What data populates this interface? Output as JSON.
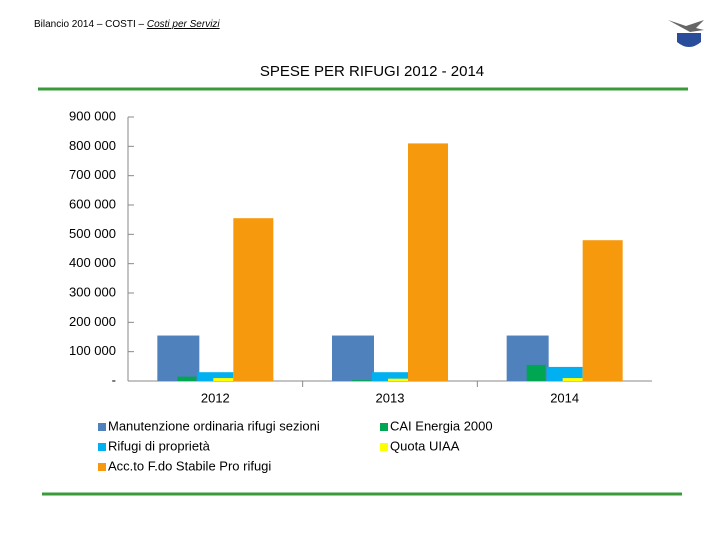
{
  "header": {
    "text": "Bilancio 2014 – COSTI – ",
    "link": "Costi per Servizi"
  },
  "chart_data": {
    "type": "bar",
    "title": "SPESE PER RIFUGI  2012 - 2014",
    "categories": [
      "2012",
      "2013",
      "2014"
    ],
    "series": [
      {
        "name": "Manutenzione ordinaria rifugi sezioni",
        "color": "#4f81bd",
        "values": [
          155000,
          155000,
          155000
        ]
      },
      {
        "name": "CAI Energia 2000",
        "color": "#00a651",
        "values": [
          15000,
          3000,
          55000
        ]
      },
      {
        "name": "Rifugi di proprietà",
        "color": "#00b0f0",
        "values": [
          30000,
          30000,
          48000
        ]
      },
      {
        "name": "Quota UIAA",
        "color": "#ffff00",
        "values": [
          10000,
          8000,
          10000
        ]
      },
      {
        "name": "Acc.to F.do Stabile Pro rifugi",
        "color": "#f7990d",
        "values": [
          555000,
          810000,
          480000
        ]
      }
    ],
    "ylim": [
      0,
      900000
    ],
    "yticks": [
      {
        "value": 0,
        "label": "-"
      },
      {
        "value": 100000,
        "label": "100 000"
      },
      {
        "value": 200000,
        "label": "200 000"
      },
      {
        "value": 300000,
        "label": "300 000"
      },
      {
        "value": 400000,
        "label": "400 000"
      },
      {
        "value": 500000,
        "label": "500 000"
      },
      {
        "value": 600000,
        "label": "600 000"
      },
      {
        "value": 700000,
        "label": "700 000"
      },
      {
        "value": 800000,
        "label": "800 000"
      },
      {
        "value": 900000,
        "label": "900 000"
      }
    ],
    "grid": false
  }
}
